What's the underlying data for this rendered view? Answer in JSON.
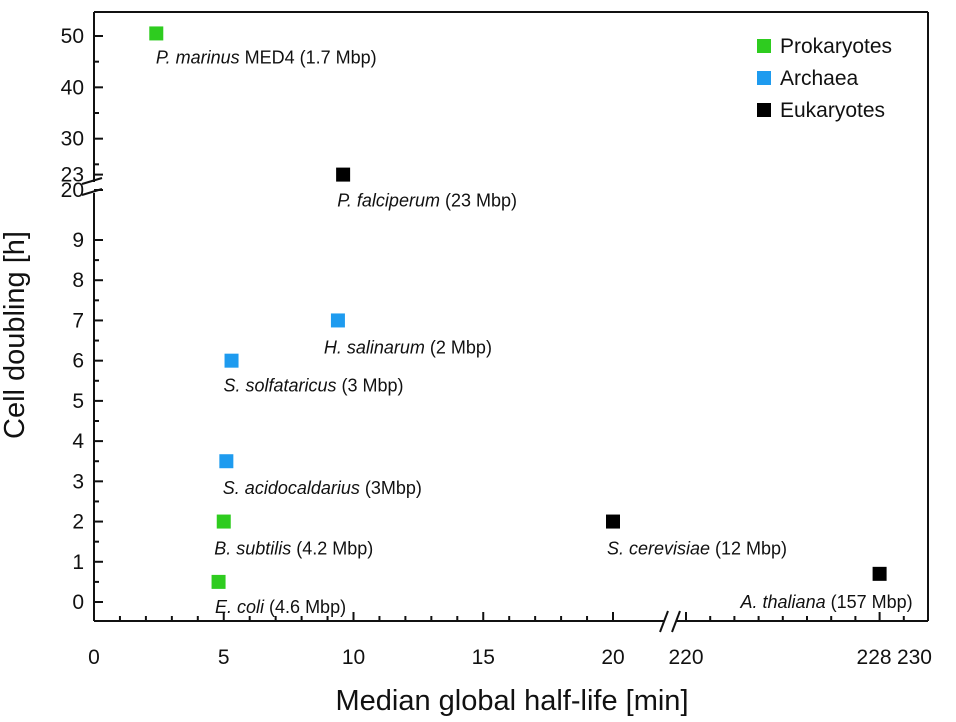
{
  "chart_data": {
    "type": "scatter",
    "title": "",
    "xlabel": "Median global half-life [min]",
    "ylabel": "Cell doubling [h]",
    "x_axis": {
      "segments": [
        {
          "range": [
            0,
            21
          ],
          "ticks": [
            0,
            5,
            10,
            15,
            20
          ],
          "tick_labels": [
            "0",
            "5",
            "10",
            "15",
            "20"
          ]
        },
        {
          "range": [
            220,
            230
          ],
          "ticks": [
            220,
            228,
            230
          ],
          "tick_labels": [
            "220",
            "228",
            "230"
          ]
        }
      ],
      "break_between": [
        21,
        220
      ]
    },
    "y_axis": {
      "segments": [
        {
          "range": [
            -0.5,
            9.8
          ],
          "ticks": [
            0,
            1,
            2,
            3,
            4,
            5,
            6,
            7,
            8,
            9
          ],
          "tick_labels": [
            "0",
            "1",
            "2",
            "3",
            "4",
            "5",
            "6",
            "7",
            "8",
            "9"
          ]
        },
        {
          "range": [
            20,
            53
          ],
          "ticks": [
            20,
            23,
            30,
            40,
            50
          ],
          "tick_labels": [
            "20",
            "23",
            "30",
            "40",
            "50"
          ]
        }
      ],
      "break_between": [
        9.8,
        20
      ]
    },
    "legend": {
      "position": "top-right",
      "entries": [
        {
          "name": "Prokaryotes",
          "color": "#2ecc1f"
        },
        {
          "name": "Archaea",
          "color": "#1e9bef"
        },
        {
          "name": "Eukaryotes",
          "color": "#000000"
        }
      ]
    },
    "series": [
      {
        "name": "Prokaryotes",
        "color": "#2ecc1f",
        "points": [
          {
            "x": 2.4,
            "y": 50.5,
            "species": "P. marinus",
            "suffix": " MED4 (1.7 Mbp)"
          },
          {
            "x": 5.0,
            "y": 2.0,
            "species": "B. subtilis",
            "suffix": " (4.2 Mbp)"
          },
          {
            "x": 4.8,
            "y": 0.5,
            "species": "E. coli",
            "suffix": " (4.6 Mbp)"
          }
        ]
      },
      {
        "name": "Archaea",
        "color": "#1e9bef",
        "points": [
          {
            "x": 9.4,
            "y": 7.0,
            "species": "H. salinarum",
            "suffix": " (2 Mbp)"
          },
          {
            "x": 5.3,
            "y": 6.0,
            "species": "S. solfataricus",
            "suffix": " (3 Mbp)"
          },
          {
            "x": 5.1,
            "y": 3.5,
            "species": "S. acidocaldarius",
            "suffix": " (3Mbp)"
          }
        ]
      },
      {
        "name": "Eukaryotes",
        "color": "#000000",
        "points": [
          {
            "x": 9.6,
            "y": 23.0,
            "species": "P. falciperum",
            "suffix": " (23 Mbp)"
          },
          {
            "x": 20.0,
            "y": 2.0,
            "species": "S. cerevisiae",
            "suffix": " (12 Mbp)"
          },
          {
            "x": 228.0,
            "y": 0.7,
            "species": "A. thaliana",
            "suffix": " (157 Mbp)"
          }
        ]
      }
    ]
  }
}
